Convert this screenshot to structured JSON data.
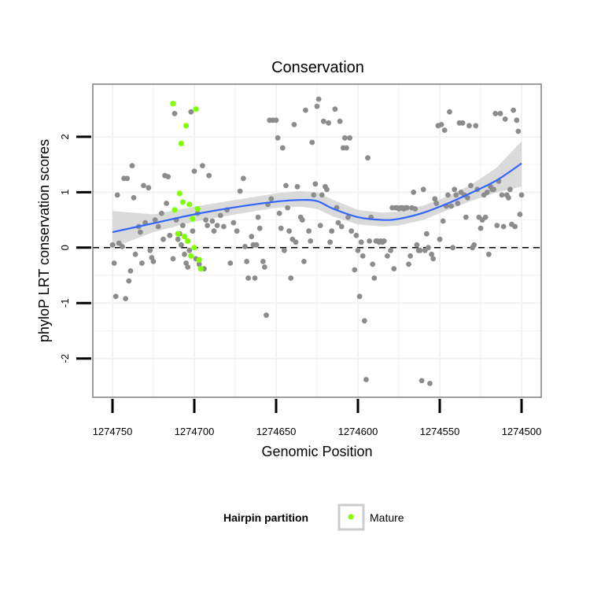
{
  "chart_data": {
    "type": "scatter",
    "title": "Conservation",
    "xlabel": "Genomic Position",
    "ylabel": "phyloP LRT conservation scores",
    "x_reversed": true,
    "xlim": [
      1274750,
      1274500
    ],
    "ylim": [
      -2.7,
      2.95
    ],
    "x_ticks": [
      1274750,
      1274700,
      1274650,
      1274600,
      1274550,
      1274500
    ],
    "x_tick_labels": [
      "1274750",
      "1274700",
      "1274650",
      "1274600",
      "1274550",
      "1274500"
    ],
    "y_ticks": [
      -2,
      -1,
      0,
      1,
      2
    ],
    "y_tick_labels": [
      "-2",
      "-1",
      "0",
      "1",
      "2"
    ],
    "grid": true,
    "reference_line": {
      "y": 0,
      "style": "dashed"
    },
    "legend": {
      "title": "Hairpin partition",
      "placement": "bottom",
      "entries": [
        {
          "label": "Mature",
          "color": "#7fff00"
        }
      ]
    },
    "colors": {
      "background_points": "#8c8c8c",
      "mature_points": "#7fff00",
      "smooth_line": "#3366ff",
      "confidence_band": "#d3d3d3",
      "grid": "#f2f2f2",
      "panel_border": "#7f7f7f"
    },
    "series": [
      {
        "name": "",
        "color": "#8c8c8c",
        "points": [
          [
            1274750,
            0.05
          ],
          [
            1274749,
            -0.28
          ],
          [
            1274748,
            -0.88
          ],
          [
            1274747,
            0.95
          ],
          [
            1274746,
            0.08
          ],
          [
            1274744,
            0.02
          ],
          [
            1274743,
            1.25
          ],
          [
            1274742,
            -0.92
          ],
          [
            1274741,
            1.25
          ],
          [
            1274740,
            -0.6
          ],
          [
            1274739,
            -0.42
          ],
          [
            1274738,
            1.48
          ],
          [
            1274737,
            0.9
          ],
          [
            1274736,
            -0.12
          ],
          [
            1274734,
            0.38
          ],
          [
            1274733,
            0.28
          ],
          [
            1274732,
            -0.28
          ],
          [
            1274731,
            1.12
          ],
          [
            1274730,
            0.45
          ],
          [
            1274728,
            1.08
          ],
          [
            1274727,
            -0.05
          ],
          [
            1274726,
            -0.18
          ],
          [
            1274725,
            -0.25
          ],
          [
            1274724,
            0.5
          ],
          [
            1274722,
            0.38
          ],
          [
            1274720,
            0.62
          ],
          [
            1274719,
            0.15
          ],
          [
            1274718,
            1.3
          ],
          [
            1274717,
            0.8
          ],
          [
            1274716,
            1.28
          ],
          [
            1274715,
            0.22
          ],
          [
            1274713,
            -0.2
          ],
          [
            1274712,
            2.42
          ],
          [
            1274711,
            0.5
          ],
          [
            1274710,
            0.15
          ],
          [
            1274709,
            0.25
          ],
          [
            1274708,
            0.05
          ],
          [
            1274707,
            0.4
          ],
          [
            1274706,
            -0.12
          ],
          [
            1274705,
            -0.28
          ],
          [
            1274704,
            -0.35
          ],
          [
            1274703,
            -0.05
          ],
          [
            1274702,
            2.45
          ],
          [
            1274701,
            0.3
          ],
          [
            1274700,
            1.38
          ],
          [
            1274699,
            -0.2
          ],
          [
            1274698,
            0.62
          ],
          [
            1274697,
            -0.3
          ],
          [
            1274696,
            -0.38
          ],
          [
            1274695,
            1.48
          ],
          [
            1274694,
            -0.38
          ],
          [
            1274693,
            0.5
          ],
          [
            1274692,
            0.4
          ],
          [
            1274691,
            1.3
          ],
          [
            1274689,
            0.48
          ],
          [
            1274688,
            0.3
          ],
          [
            1274686,
            0.4
          ],
          [
            1274684,
            0.58
          ],
          [
            1274682,
            0.38
          ],
          [
            1274680,
            0.68
          ],
          [
            1274678,
            -0.28
          ],
          [
            1274676,
            0.45
          ],
          [
            1274674,
            0.3
          ],
          [
            1274672,
            1.02
          ],
          [
            1274670,
            1.25
          ],
          [
            1274669,
            0.02
          ],
          [
            1274668,
            -0.25
          ],
          [
            1274667,
            -0.55
          ],
          [
            1274665,
            0.2
          ],
          [
            1274664,
            0.05
          ],
          [
            1274663,
            -0.55
          ],
          [
            1274662,
            0.05
          ],
          [
            1274661,
            0.55
          ],
          [
            1274660,
            0.35
          ],
          [
            1274658,
            -0.25
          ],
          [
            1274657,
            -0.35
          ],
          [
            1274656,
            -1.22
          ],
          [
            1274655,
            0.78
          ],
          [
            1274654,
            2.3
          ],
          [
            1274653,
            0.88
          ],
          [
            1274652,
            2.3
          ],
          [
            1274650,
            2.3
          ],
          [
            1274649,
            1.98
          ],
          [
            1274648,
            0.62
          ],
          [
            1274647,
            0.35
          ],
          [
            1274646,
            1.8
          ],
          [
            1274645,
            -0.05
          ],
          [
            1274644,
            1.12
          ],
          [
            1274643,
            0.72
          ],
          [
            1274642,
            0.3
          ],
          [
            1274641,
            -0.55
          ],
          [
            1274640,
            0.15
          ],
          [
            1274639,
            2.22
          ],
          [
            1274638,
            0.1
          ],
          [
            1274637,
            1.1
          ],
          [
            1274635,
            0.55
          ],
          [
            1274634,
            0.5
          ],
          [
            1274633,
            -0.25
          ],
          [
            1274632,
            2.48
          ],
          [
            1274630,
            0.3
          ],
          [
            1274629,
            0.12
          ],
          [
            1274628,
            1.9
          ],
          [
            1274627,
            0.95
          ],
          [
            1274626,
            1.15
          ],
          [
            1274625,
            2.55
          ],
          [
            1274624,
            2.68
          ],
          [
            1274623,
            0.4
          ],
          [
            1274622,
            0.95
          ],
          [
            1274621,
            2.28
          ],
          [
            1274620,
            1.1
          ],
          [
            1274619,
            1.05
          ],
          [
            1274618,
            2.25
          ],
          [
            1274617,
            0.1
          ],
          [
            1274616,
            0.3
          ],
          [
            1274614,
            2.5
          ],
          [
            1274613,
            0.72
          ],
          [
            1274612,
            0.45
          ],
          [
            1274611,
            2.28
          ],
          [
            1274610,
            0.38
          ],
          [
            1274609,
            1.8
          ],
          [
            1274608,
            1.98
          ],
          [
            1274607,
            1.8
          ],
          [
            1274606,
            0.55
          ],
          [
            1274605,
            1.98
          ],
          [
            1274604,
            0.3
          ],
          [
            1274602,
            -0.4
          ],
          [
            1274601,
            0.22
          ],
          [
            1274600,
            -0.05
          ],
          [
            1274599,
            -0.88
          ],
          [
            1274598,
            0.1
          ],
          [
            1274597,
            -0.15
          ],
          [
            1274596,
            -1.32
          ],
          [
            1274595,
            -2.38
          ],
          [
            1274594,
            1.62
          ],
          [
            1274593,
            0.12
          ],
          [
            1274592,
            0.55
          ],
          [
            1274591,
            -0.3
          ],
          [
            1274590,
            -0.55
          ],
          [
            1274589,
            0.12
          ],
          [
            1274588,
            0.12
          ],
          [
            1274587,
            0.1
          ],
          [
            1274586,
            0.12
          ],
          [
            1274585,
            0.1
          ],
          [
            1274584,
            0.12
          ],
          [
            1274582,
            -0.15
          ],
          [
            1274580,
            -0.05
          ],
          [
            1274579,
            0.72
          ],
          [
            1274578,
            -0.38
          ],
          [
            1274577,
            0.72
          ],
          [
            1274576,
            0.72
          ],
          [
            1274575,
            0.7
          ],
          [
            1274574,
            0.72
          ],
          [
            1274573,
            0.72
          ],
          [
            1274572,
            0.7
          ],
          [
            1274571,
            0.72
          ],
          [
            1274570,
            0.72
          ],
          [
            1274569,
            -0.3
          ],
          [
            1274568,
            -0.15
          ],
          [
            1274567,
            0.72
          ],
          [
            1274566,
            1.0
          ],
          [
            1274565,
            0.7
          ],
          [
            1274564,
            0.05
          ],
          [
            1274563,
            -0.05
          ],
          [
            1274562,
            -0.05
          ],
          [
            1274561,
            -2.4
          ],
          [
            1274560,
            1.05
          ],
          [
            1274559,
            -0.05
          ],
          [
            1274558,
            0.25
          ],
          [
            1274557,
            0.0
          ],
          [
            1274556,
            -2.45
          ],
          [
            1274555,
            -0.12
          ],
          [
            1274554,
            -0.2
          ],
          [
            1274553,
            0.88
          ],
          [
            1274552,
            0.8
          ],
          [
            1274551,
            2.2
          ],
          [
            1274550,
            0.15
          ],
          [
            1274549,
            2.22
          ],
          [
            1274548,
            0.48
          ],
          [
            1274547,
            2.12
          ],
          [
            1274546,
            0.75
          ],
          [
            1274545,
            0.95
          ],
          [
            1274544,
            2.45
          ],
          [
            1274543,
            0.75
          ],
          [
            1274542,
            0.0
          ],
          [
            1274541,
            1.05
          ],
          [
            1274540,
            0.95
          ],
          [
            1274539,
            0.8
          ],
          [
            1274538,
            2.25
          ],
          [
            1274537,
            1.0
          ],
          [
            1274536,
            2.25
          ],
          [
            1274535,
            0.95
          ],
          [
            1274534,
            0.55
          ],
          [
            1274533,
            0.9
          ],
          [
            1274532,
            2.2
          ],
          [
            1274531,
            1.12
          ],
          [
            1274530,
            0.0
          ],
          [
            1274529,
            0.05
          ],
          [
            1274528,
            2.2
          ],
          [
            1274527,
            1.05
          ],
          [
            1274526,
            0.55
          ],
          [
            1274525,
            0.35
          ],
          [
            1274524,
            0.5
          ],
          [
            1274523,
            0.95
          ],
          [
            1274522,
            0.55
          ],
          [
            1274521,
            1.0
          ],
          [
            1274520,
            -0.12
          ],
          [
            1274519,
            1.1
          ],
          [
            1274518,
            1.05
          ],
          [
            1274517,
            1.05
          ],
          [
            1274516,
            2.42
          ],
          [
            1274515,
            0.4
          ],
          [
            1274514,
            1.2
          ],
          [
            1274513,
            2.42
          ],
          [
            1274512,
            0.95
          ],
          [
            1274511,
            0.38
          ],
          [
            1274510,
            2.32
          ],
          [
            1274509,
            0.95
          ],
          [
            1274508,
            0.9
          ],
          [
            1274507,
            1.05
          ],
          [
            1274506,
            0.42
          ],
          [
            1274505,
            2.48
          ],
          [
            1274504,
            0.38
          ],
          [
            1274503,
            2.3
          ],
          [
            1274502,
            2.1
          ],
          [
            1274501,
            0.6
          ],
          [
            1274500,
            0.95
          ]
        ]
      },
      {
        "name": "Mature",
        "color": "#7fff00",
        "points": [
          [
            1274713,
            2.6
          ],
          [
            1274712,
            0.68
          ],
          [
            1274710,
            0.25
          ],
          [
            1274709,
            0.98
          ],
          [
            1274708,
            1.88
          ],
          [
            1274707,
            0.82
          ],
          [
            1274706,
            0.2
          ],
          [
            1274705,
            2.2
          ],
          [
            1274704,
            0.12
          ],
          [
            1274703,
            0.78
          ],
          [
            1274702,
            -0.15
          ],
          [
            1274701,
            0.52
          ],
          [
            1274700,
            0.0
          ],
          [
            1274699,
            2.5
          ],
          [
            1274698,
            0.7
          ],
          [
            1274697,
            -0.22
          ],
          [
            1274696,
            -0.38
          ]
        ]
      }
    ],
    "smooth": {
      "x": [
        1274750,
        1274725,
        1274700,
        1274675,
        1274650,
        1274635,
        1274625,
        1274615,
        1274600,
        1274585,
        1274575,
        1274560,
        1274545,
        1274530,
        1274515,
        1274500
      ],
      "y": [
        0.28,
        0.44,
        0.6,
        0.73,
        0.83,
        0.86,
        0.84,
        0.7,
        0.55,
        0.5,
        0.52,
        0.63,
        0.8,
        1.0,
        1.22,
        1.52
      ],
      "lower": [
        0.0,
        0.28,
        0.47,
        0.6,
        0.72,
        0.74,
        0.7,
        0.56,
        0.42,
        0.38,
        0.4,
        0.5,
        0.68,
        0.85,
        1.0,
        1.1
      ],
      "upper": [
        0.66,
        0.6,
        0.74,
        0.86,
        0.98,
        1.02,
        1.0,
        0.86,
        0.68,
        0.63,
        0.65,
        0.76,
        0.93,
        1.15,
        1.45,
        1.92
      ]
    }
  }
}
